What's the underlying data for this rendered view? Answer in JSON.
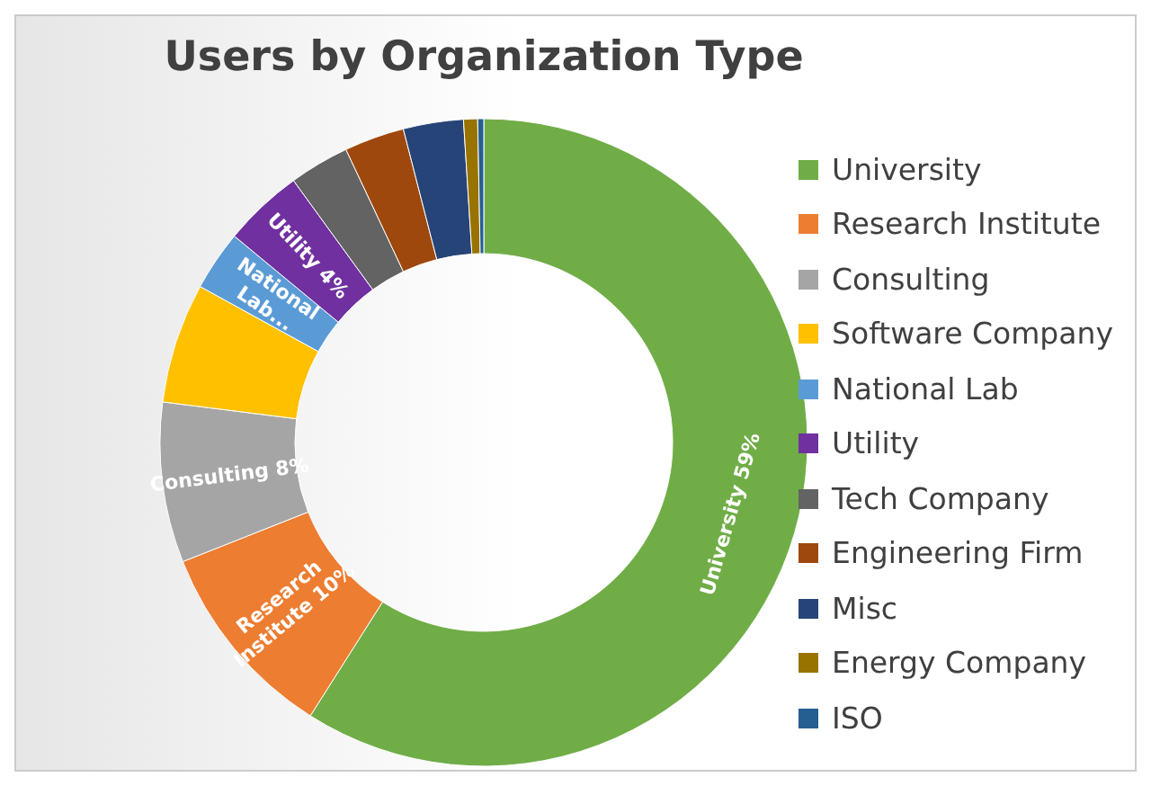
{
  "chart_data": {
    "type": "donut",
    "title": "Users by Organization Type",
    "categories": [
      "University",
      "Research Institute",
      "Consulting",
      "Software Company",
      "National Lab",
      "Utility",
      "Tech Company",
      "Engineering Firm",
      "Misc",
      "Energy Company",
      "ISO"
    ],
    "values": [
      59,
      10,
      8,
      6,
      3,
      4,
      3,
      3,
      3,
      0.7,
      0.3
    ],
    "colors": [
      "#70ad47",
      "#ed7d31",
      "#a5a5a5",
      "#ffc000",
      "#5b9bd5",
      "#7030a0",
      "#636363",
      "#9e480e",
      "#264478",
      "#997300",
      "#255e91"
    ],
    "value_labels": [
      "University 59%",
      "Research Institute 10%",
      "Consulting 8%",
      null,
      "National Lab...",
      "Utility 4%",
      null,
      null,
      null,
      null,
      null
    ],
    "legend": "right"
  }
}
